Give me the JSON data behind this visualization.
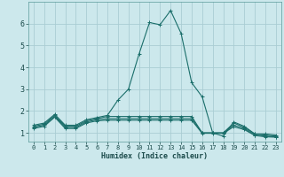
{
  "title": "",
  "xlabel": "Humidex (Indice chaleur)",
  "ylabel": "",
  "background_color": "#cce8ec",
  "grid_color": "#aacdd3",
  "line_color": "#1a6e6a",
  "xlim": [
    -0.5,
    23.5
  ],
  "ylim": [
    0.6,
    7.0
  ],
  "yticks": [
    1,
    2,
    3,
    4,
    5,
    6
  ],
  "xticks": [
    0,
    1,
    2,
    3,
    4,
    5,
    6,
    7,
    8,
    9,
    10,
    11,
    12,
    13,
    14,
    15,
    16,
    17,
    18,
    19,
    20,
    21,
    22,
    23
  ],
  "series": [
    {
      "x": [
        0,
        1,
        2,
        3,
        4,
        5,
        6,
        7,
        8,
        9,
        10,
        11,
        12,
        13,
        14,
        15,
        16,
        17,
        18,
        19,
        20,
        21,
        22,
        23
      ],
      "y": [
        1.35,
        1.45,
        1.85,
        1.35,
        1.35,
        1.6,
        1.7,
        1.8,
        2.5,
        3.0,
        4.6,
        6.05,
        5.95,
        6.6,
        5.55,
        3.3,
        2.65,
        1.0,
        0.85,
        1.5,
        1.3,
        0.95,
        0.95,
        0.9
      ]
    },
    {
      "x": [
        0,
        1,
        2,
        3,
        4,
        5,
        6,
        7,
        8,
        9,
        10,
        11,
        12,
        13,
        14,
        15,
        16,
        17,
        18,
        19,
        20,
        21,
        22,
        23
      ],
      "y": [
        1.3,
        1.4,
        1.8,
        1.3,
        1.3,
        1.55,
        1.65,
        1.75,
        1.75,
        1.75,
        1.75,
        1.75,
        1.75,
        1.75,
        1.75,
        1.75,
        1.0,
        1.0,
        1.0,
        1.45,
        1.25,
        0.95,
        0.9,
        0.85
      ]
    },
    {
      "x": [
        0,
        1,
        2,
        3,
        4,
        5,
        6,
        7,
        8,
        9,
        10,
        11,
        12,
        13,
        14,
        15,
        16,
        17,
        18,
        19,
        20,
        21,
        22,
        23
      ],
      "y": [
        1.25,
        1.35,
        1.75,
        1.25,
        1.25,
        1.5,
        1.6,
        1.65,
        1.65,
        1.65,
        1.65,
        1.65,
        1.65,
        1.65,
        1.65,
        1.65,
        1.0,
        1.0,
        1.0,
        1.35,
        1.2,
        0.9,
        0.85,
        0.82
      ]
    },
    {
      "x": [
        0,
        1,
        2,
        3,
        4,
        5,
        6,
        7,
        8,
        9,
        10,
        11,
        12,
        13,
        14,
        15,
        16,
        17,
        18,
        19,
        20,
        21,
        22,
        23
      ],
      "y": [
        1.2,
        1.3,
        1.72,
        1.2,
        1.2,
        1.45,
        1.55,
        1.58,
        1.58,
        1.58,
        1.58,
        1.58,
        1.58,
        1.58,
        1.58,
        1.58,
        0.98,
        0.98,
        0.98,
        1.28,
        1.15,
        0.88,
        0.82,
        0.8
      ]
    }
  ],
  "marker": "+",
  "markersize": 3,
  "linewidth": 0.8
}
